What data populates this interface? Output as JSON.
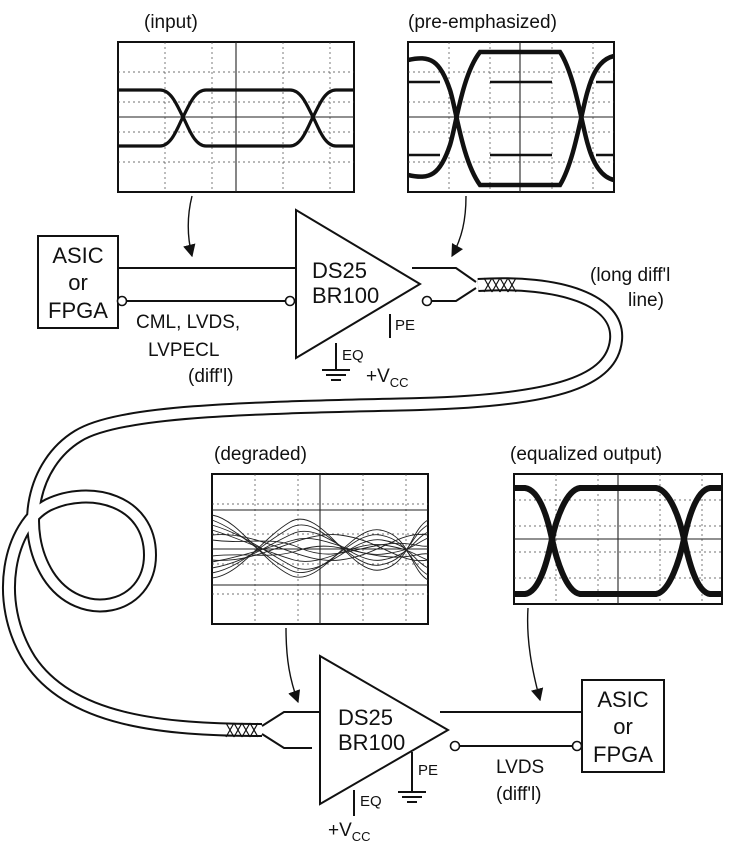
{
  "scopes": {
    "input": "(input)",
    "pre_emphasized": "(pre-emphasized)",
    "degraded": "(degraded)",
    "equalized": "(equalized output)"
  },
  "top_system": {
    "asic": [
      "ASIC",
      "or",
      "FPGA"
    ],
    "driver": [
      "DS25",
      "BR100"
    ],
    "io_std": [
      "CML, LVDS,",
      "LVPECL",
      "(diff'l)"
    ],
    "pe": "PE",
    "eq": "EQ",
    "vcc": "+V",
    "vcc_sub": "CC"
  },
  "cable": [
    "(long diff'l",
    "line)"
  ],
  "bottom_system": {
    "asic": [
      "ASIC",
      "or",
      "FPGA"
    ],
    "driver": [
      "DS25",
      "BR100"
    ],
    "io_std": [
      "LVDS",
      "(diff'l)"
    ],
    "pe": "PE",
    "eq": "EQ",
    "vcc": "+V",
    "vcc_sub": "CC"
  },
  "colors": {
    "ink": "#111111",
    "background": "#ffffff"
  }
}
